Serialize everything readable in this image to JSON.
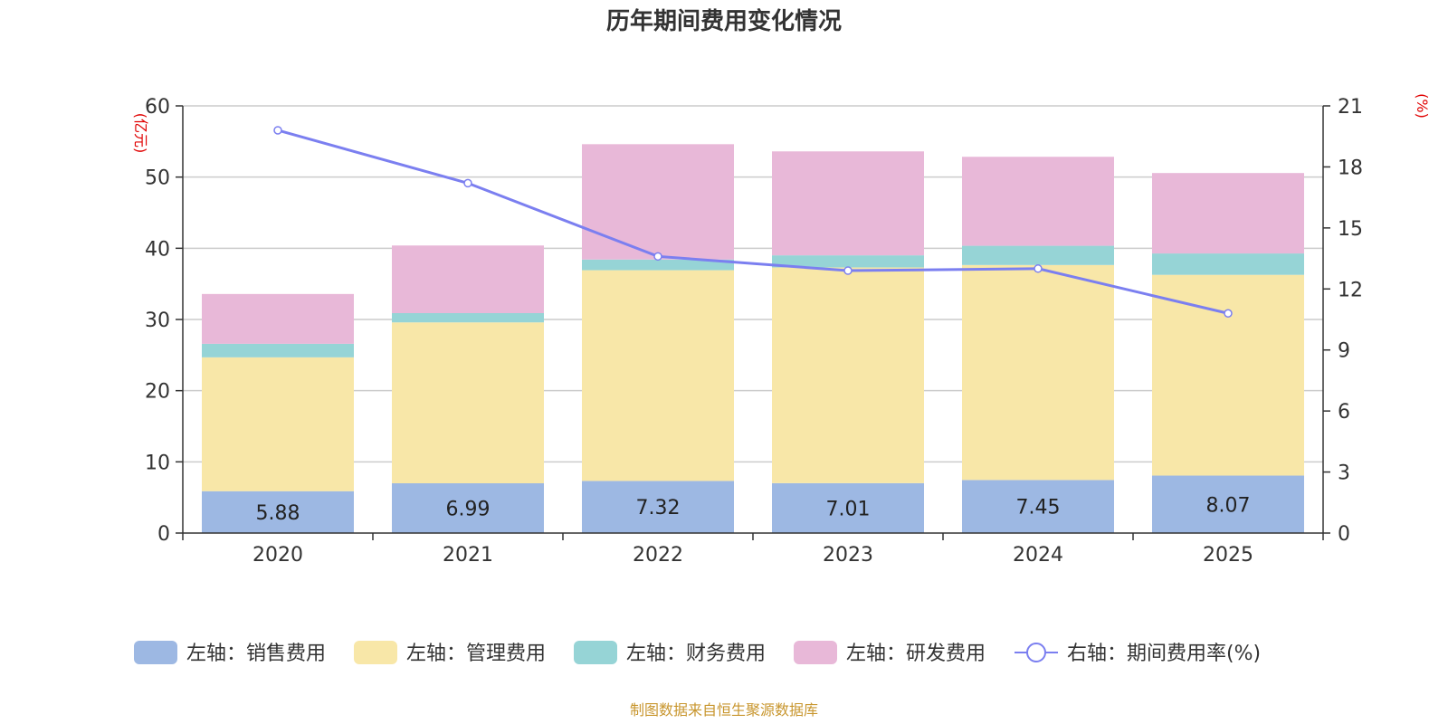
{
  "chart_data": {
    "type": "bar",
    "stacked": true,
    "title": "历年期间费用变化情况",
    "categories": [
      "2020",
      "2021",
      "2022",
      "2023",
      "2024",
      "2025"
    ],
    "left_axis": {
      "unit": "(亿元)",
      "ylim": [
        0,
        60
      ],
      "ticks": [
        0,
        10,
        20,
        30,
        40,
        50,
        60
      ]
    },
    "right_axis": {
      "unit": "(%)",
      "ylim": [
        0,
        21
      ],
      "ticks": [
        0,
        3,
        6,
        9,
        12,
        15,
        18,
        21
      ]
    },
    "grid": true,
    "series": [
      {
        "name": "左轴：销售费用",
        "axis": "left",
        "color": "#9db8e3",
        "values": [
          5.88,
          6.99,
          7.32,
          7.01,
          7.45,
          8.07
        ],
        "show_labels": true
      },
      {
        "name": "左轴：管理费用",
        "axis": "left",
        "color": "#f8e7a8",
        "values": [
          18.8,
          22.6,
          29.6,
          30.3,
          30.2,
          28.2
        ],
        "show_labels": false
      },
      {
        "name": "左轴：财务费用",
        "axis": "left",
        "color": "#96d4d6",
        "values": [
          1.9,
          1.3,
          1.5,
          1.7,
          2.7,
          3.0
        ],
        "show_labels": false
      },
      {
        "name": "左轴：研发费用",
        "axis": "left",
        "color": "#e8b8d8",
        "values": [
          7.0,
          9.5,
          16.2,
          14.6,
          12.5,
          11.3
        ],
        "show_labels": false
      }
    ],
    "line_series": {
      "name": "右轴：期间费用率(%)",
      "axis": "right",
      "color": "#7b7ff0",
      "values": [
        19.8,
        17.2,
        13.6,
        12.9,
        13.0,
        10.8
      ]
    },
    "legend_position": "bottom",
    "source": "制图数据来自恒生聚源数据库"
  }
}
